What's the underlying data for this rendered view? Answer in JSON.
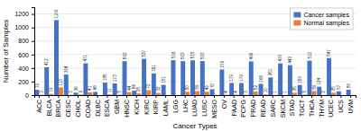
{
  "chart_data": {
    "type": "bar",
    "xlabel": "Cancer Types",
    "ylabel": "Number of Samples",
    "categories": [
      "ACC",
      "BLCA",
      "BRCA",
      "CESC",
      "CHOL",
      "COAD",
      "DLBC",
      "ESCA",
      "GBM",
      "HNSC",
      "KICH",
      "KIRC",
      "KIRP",
      "LAML",
      "LGG",
      "LHC",
      "LUAD",
      "LUSC",
      "MESO",
      "OV",
      "PAAD",
      "PCPG",
      "PRAD",
      "READ",
      "SARC",
      "SKCM",
      "STAD",
      "TGCT",
      "THCA",
      "THYM",
      "UCEC",
      "UCS",
      "UVM"
    ],
    "series": [
      {
        "name": "Cancer samples",
        "color": "#4472c4",
        "values": [
          79,
          412,
          1109,
          304,
          36,
          471,
          48,
          185,
          173,
          502,
          66,
          537,
          321,
          151,
          516,
          503,
          515,
          503,
          87,
          379,
          179,
          179,
          499,
          166,
          261,
          470,
          443,
          150,
          510,
          124,
          547,
          57,
          80
        ]
      },
      {
        "name": "Normal samples",
        "color": "#ed7d31",
        "values": [
          3,
          19,
          113,
          3,
          9,
          41,
          0,
          11,
          5,
          44,
          25,
          72,
          32,
          0,
          0,
          50,
          59,
          49,
          0,
          4,
          4,
          3,
          52,
          10,
          1,
          1,
          35,
          5,
          59,
          2,
          35,
          0,
          0
        ],
        "value_labels": [
          "3",
          "19",
          "113",
          "3",
          "9",
          "41",
          null,
          "11",
          "5",
          "44",
          "25",
          "72",
          "32",
          null,
          null,
          "50",
          "59",
          "49",
          null,
          "4",
          "4",
          "3",
          "52",
          "10",
          "1",
          "1",
          "35",
          "5",
          "59",
          "2",
          "35",
          null,
          null
        ]
      }
    ],
    "ylim": [
      0,
      1300
    ],
    "yticks": [
      0,
      200,
      400,
      600,
      800,
      1000,
      1200
    ],
    "grid": true,
    "legend": "upper-right",
    "data_labels": true
  }
}
